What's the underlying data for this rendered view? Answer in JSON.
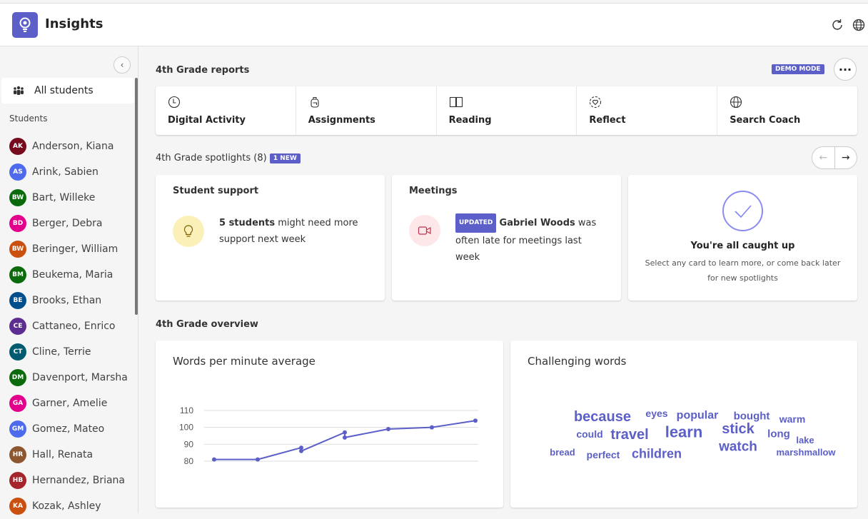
{
  "app": {
    "title": "Insights",
    "accent": "#5b5fc7",
    "icons": [
      "refresh-icon",
      "globe-icon"
    ]
  },
  "sidebar": {
    "all_students": "All students",
    "students_heading": "Students",
    "students": [
      {
        "initials": "AK",
        "name": "Anderson, Kiana",
        "color": "#750b1c"
      },
      {
        "initials": "AS",
        "name": "Arink, Sabien",
        "color": "#4f6bed"
      },
      {
        "initials": "BW",
        "name": "Bart, Willeke",
        "color": "#0b6a0b"
      },
      {
        "initials": "BD",
        "name": "Berger, Debra",
        "color": "#e3008c"
      },
      {
        "initials": "BW",
        "name": "Beringer, William",
        "color": "#ca5010"
      },
      {
        "initials": "BM",
        "name": "Beukema, Maria",
        "color": "#0b6a0b"
      },
      {
        "initials": "BE",
        "name": "Brooks, Ethan",
        "color": "#004e8c"
      },
      {
        "initials": "CE",
        "name": "Cattaneo, Enrico",
        "color": "#5c2e91"
      },
      {
        "initials": "CT",
        "name": "Cline, Terrie",
        "color": "#005b70"
      },
      {
        "initials": "DM",
        "name": "Davenport, Marsha",
        "color": "#0b6a0b"
      },
      {
        "initials": "GA",
        "name": "Garner, Amelie",
        "color": "#e3008c"
      },
      {
        "initials": "GM",
        "name": "Gomez, Mateo",
        "color": "#4f6bed"
      },
      {
        "initials": "HR",
        "name": "Hall, Renata",
        "color": "#8e562e"
      },
      {
        "initials": "HB",
        "name": "Hernandez, Briana",
        "color": "#a4262c"
      },
      {
        "initials": "KA",
        "name": "Kozak, Ashley",
        "color": "#ca5010"
      }
    ]
  },
  "reports": {
    "heading": "4th Grade reports",
    "demo_badge": "DEMO MODE",
    "tiles": [
      "Digital Activity",
      "Assignments",
      "Reading",
      "Reflect",
      "Search Coach"
    ]
  },
  "spotlights": {
    "heading": "4th Grade spotlights (8)",
    "new_badge": "1 NEW",
    "support": {
      "title": "Student support",
      "bold": "5 students",
      "text": " might need more support next week"
    },
    "meetings": {
      "title": "Meetings",
      "badge": "UPDATED",
      "bold": "Gabriel Woods",
      "text": " was often late for meetings last week"
    },
    "caught_up": {
      "title": "You're all caught up",
      "text": "Select any card to learn more, or come back later for new spotlights"
    }
  },
  "overview": {
    "heading": "4th Grade overview",
    "wpm_title": "Words per minute average",
    "words_title": "Challenging words",
    "words": [
      "because",
      "eyes",
      "popular",
      "bought",
      "warm",
      "could",
      "travel",
      "learn",
      "stick",
      "long",
      "lake",
      "bread",
      "perfect",
      "children",
      "watch",
      "marshmallow"
    ]
  },
  "chart_data": {
    "type": "line",
    "title": "Words per minute average",
    "yticks": [
      80,
      90,
      100,
      110
    ],
    "ylim": [
      80,
      110
    ],
    "grid": true,
    "color": "#5b5fc7",
    "points": [
      [
        1,
        81
      ],
      [
        2,
        81
      ],
      [
        3,
        88
      ],
      [
        3,
        86
      ],
      [
        4,
        97
      ],
      [
        4,
        94
      ],
      [
        5,
        99
      ],
      [
        6,
        100
      ],
      [
        7,
        104
      ]
    ]
  }
}
